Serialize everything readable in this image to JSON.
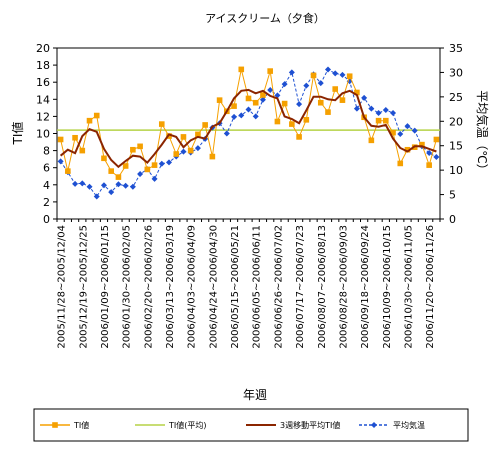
{
  "chart_data": {
    "type": "line",
    "title": "アイスクリーム（夕食）",
    "xlabel": "年週",
    "ylabel_left": "TI値",
    "ylabel_right": "平均気温（℃）",
    "ylim_left": [
      0,
      20
    ],
    "ylim_right": [
      0,
      35
    ],
    "yticks_left": [
      "0",
      "2",
      "4",
      "6",
      "8",
      "10",
      "12",
      "14",
      "16",
      "18",
      "20"
    ],
    "yticks_right": [
      "0",
      "5",
      "10",
      "15",
      "20",
      "25",
      "30",
      "35"
    ],
    "x": [
      "2005/11/28~2005/12/04",
      "2005/12/05~2005/12/11",
      "2005/12/12~2005/12/18",
      "2005/12/19~2005/12/25",
      "2005/12/26~2006/01/01",
      "2006/01/02~2006/01/08",
      "2006/01/09~2006/01/15",
      "2006/01/16~2006/01/22",
      "2006/01/23~2006/01/29",
      "2006/01/30~2006/02/05",
      "2006/02/06~2006/02/12",
      "2006/02/13~2006/02/19",
      "2006/02/20~2006/02/26",
      "2006/02/27~2006/03/05",
      "2006/03/06~2006/03/12",
      "2006/03/13~2006/03/19",
      "2006/03/20~2006/03/26",
      "2006/03/27~2006/04/02",
      "2006/04/03~2006/04/09",
      "2006/04/10~2006/04/16",
      "2006/04/17~2006/04/23",
      "2006/04/24~2006/04/30",
      "2006/05/01~2006/05/07",
      "2006/05/08~2006/05/14",
      "2006/05/15~2006/05/21",
      "2006/05/22~2006/05/28",
      "2006/05/29~2006/06/04",
      "2006/06/05~2006/06/11",
      "2006/06/12~2006/06/18",
      "2006/06/19~2006/06/25",
      "2006/06/26~2006/07/02",
      "2006/07/03~2006/07/09",
      "2006/07/10~2006/07/16",
      "2006/07/17~2006/07/23",
      "2006/07/24~2006/07/30",
      "2006/07/31~2006/08/06",
      "2006/08/07~2006/08/13",
      "2006/08/14~2006/08/20",
      "2006/08/21~2006/08/27",
      "2006/08/28~2006/09/03",
      "2006/09/04~2006/09/10",
      "2006/09/11~2006/09/17",
      "2006/09/18~2006/09/24",
      "2006/09/25~2006/10/01",
      "2006/10/02~2006/10/08",
      "2006/10/09~2006/10/15",
      "2006/10/16~2006/10/22",
      "2006/10/23~2006/10/29",
      "2006/10/30~2006/11/05",
      "2006/11/06~2006/11/12",
      "2006/11/13~2006/11/19",
      "2006/11/20~2006/11/26",
      "2006/11/27~2006/12/03"
    ],
    "xtick_labels": [
      "2005/11/28~2005/12/04",
      "2005/12/19~2005/12/25",
      "2006/01/09~2006/01/15",
      "2006/01/30~2006/02/05",
      "2006/02/20~2006/02/26",
      "2006/03/13~2006/03/19",
      "2006/04/03~2006/04/09",
      "2006/04/24~2006/04/30",
      "2006/05/15~2006/05/21",
      "2006/06/05~2006/06/11",
      "2006/06/26~2006/07/02",
      "2006/07/17~2006/07/23",
      "2006/08/07~2006/08/13",
      "2006/08/28~2006/09/03",
      "2006/09/18~2006/09/24",
      "2006/10/09~2006/10/15",
      "2006/10/30~2006/11/05",
      "2006/11/20~2006/11/26"
    ],
    "series": [
      {
        "name": "TI値",
        "axis": "left",
        "color": "#F5A000",
        "marker": "square",
        "values": [
          9.3,
          5.6,
          9.5,
          8.0,
          11.5,
          12.1,
          7.1,
          5.6,
          4.9,
          6.2,
          8.1,
          8.5,
          5.8,
          6.3,
          11.1,
          9.7,
          7.6,
          9.6,
          8.0,
          9.9,
          11.0,
          7.3,
          13.9,
          12.6,
          13.2,
          17.5,
          14.1,
          13.6,
          14.5,
          17.3,
          11.4,
          13.5,
          11.1,
          9.6,
          11.6,
          16.8,
          13.6,
          12.5,
          15.2,
          13.9,
          16.7,
          14.8,
          11.9,
          9.2,
          11.5,
          11.5,
          10.1,
          6.5,
          8.1,
          8.4,
          8.7,
          6.3,
          9.3
        ]
      },
      {
        "name": "TI値(平均)",
        "axis": "left",
        "color": "#B5D246",
        "marker": "none",
        "values": [
          10.4,
          10.4,
          10.4,
          10.4,
          10.4,
          10.4,
          10.4,
          10.4,
          10.4,
          10.4,
          10.4,
          10.4,
          10.4,
          10.4,
          10.4,
          10.4,
          10.4,
          10.4,
          10.4,
          10.4,
          10.4,
          10.4,
          10.4,
          10.4,
          10.4,
          10.4,
          10.4,
          10.4,
          10.4,
          10.4,
          10.4,
          10.4,
          10.4,
          10.4,
          10.4,
          10.4,
          10.4,
          10.4,
          10.4,
          10.4,
          10.4,
          10.4,
          10.4,
          10.4,
          10.4,
          10.4,
          10.4,
          10.4,
          10.4,
          10.4,
          10.4,
          10.4,
          10.4
        ]
      },
      {
        "name": "3週移動平均TI値",
        "axis": "left",
        "color": "#8B2500",
        "marker": "none",
        "values": [
          7.4,
          8.1,
          7.7,
          9.7,
          10.5,
          10.2,
          8.2,
          6.9,
          6.1,
          6.8,
          7.4,
          7.3,
          6.6,
          7.6,
          8.7,
          9.9,
          9.6,
          8.4,
          9.2,
          9.6,
          9.4,
          10.8,
          11.2,
          12.6,
          14.1,
          15.0,
          15.1,
          14.7,
          15.0,
          14.4,
          14.1,
          12.0,
          11.7,
          11.2,
          12.7,
          14.3,
          14.3,
          14.0,
          13.9,
          14.7,
          15.0,
          14.5,
          11.9,
          10.9,
          10.8,
          11.0,
          9.4,
          8.3,
          7.9,
          8.5,
          8.5,
          8.2,
          7.9
        ]
      },
      {
        "name": "平均気温",
        "axis": "right",
        "color": "#1E50D2",
        "marker": "diamond",
        "values": [
          11.8,
          9.6,
          7.2,
          7.3,
          6.6,
          4.6,
          6.9,
          5.5,
          7.1,
          6.8,
          6.6,
          9.2,
          10.2,
          8.2,
          11.3,
          11.6,
          12.8,
          13.8,
          13.6,
          14.5,
          16.4,
          18.7,
          19.6,
          17.5,
          20.9,
          21.2,
          22.4,
          21.0,
          24.4,
          26.4,
          25.3,
          27.6,
          30.0,
          23.5,
          27.3,
          29.6,
          27.8,
          30.6,
          29.8,
          29.5,
          28.2,
          22.6,
          24.8,
          22.6,
          21.7,
          22.3,
          21.7,
          17.4,
          19.0,
          18.1,
          14.9,
          13.5,
          12.7
        ]
      }
    ],
    "legend_position": "bottom"
  }
}
